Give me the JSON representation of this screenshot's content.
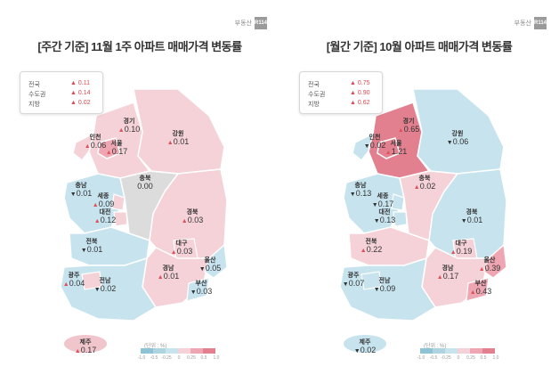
{
  "brand": {
    "text": "부동산",
    "badge": "R114"
  },
  "colors": {
    "up": "#e0505a",
    "down": "#2a8ab6",
    "low_rise": "#f4d2d8",
    "mid_rise": "#eea6b2",
    "high_rise": "#e2808f",
    "fall": "#c6e3ee",
    "flat": "#dcdcdc",
    "sea_label": "#f0c5cc"
  },
  "weekly": {
    "title": "[주간 기준] 11월 1주 아파트 매매가격 변동률",
    "summary": [
      {
        "name": "전국",
        "value": "0.11"
      },
      {
        "name": "수도권",
        "value": "0.14"
      },
      {
        "name": "지방",
        "value": "0.02"
      }
    ],
    "regions": {
      "gyeonggi": {
        "name": "경기",
        "value": "0.10",
        "dir": "up"
      },
      "gangwon": {
        "name": "강원",
        "value": "0.01",
        "dir": "up"
      },
      "incheon": {
        "name": "인천",
        "value": "0.06",
        "dir": "up"
      },
      "seoul": {
        "name": "서울",
        "value": "0.17",
        "dir": "up"
      },
      "chungbuk": {
        "name": "충북",
        "value": "0.00",
        "dir": "flat"
      },
      "chungnam": {
        "name": "충남",
        "value": "0.01",
        "dir": "down"
      },
      "sejong": {
        "name": "세종",
        "value": "0.09",
        "dir": "up"
      },
      "daejeon": {
        "name": "대전",
        "value": "0.12",
        "dir": "up"
      },
      "gyeongbuk": {
        "name": "경북",
        "value": "0.03",
        "dir": "up"
      },
      "jeonbuk": {
        "name": "전북",
        "value": "0.01",
        "dir": "down"
      },
      "daegu": {
        "name": "대구",
        "value": "0.03",
        "dir": "up"
      },
      "ulsan": {
        "name": "울산",
        "value": "0.05",
        "dir": "down"
      },
      "gyeongnam": {
        "name": "경남",
        "value": "0.01",
        "dir": "up"
      },
      "gwangju": {
        "name": "광주",
        "value": "0.04",
        "dir": "up"
      },
      "jeonnam": {
        "name": "전남",
        "value": "0.02",
        "dir": "down"
      },
      "busan": {
        "name": "부산",
        "value": "0.03",
        "dir": "down"
      },
      "jeju": {
        "name": "제주",
        "value": "0.17",
        "dir": "up"
      }
    },
    "scale": {
      "unit": "(단위 : %)",
      "ticks": [
        "-1.0",
        "-0.5",
        "-0.25",
        "0",
        "0.25",
        "0.5",
        "1.0"
      ]
    }
  },
  "monthly": {
    "title": "[월간 기준] 10월 아파트 매매가격 변동률",
    "summary": [
      {
        "name": "전국",
        "value": "0.75"
      },
      {
        "name": "수도권",
        "value": "0.90"
      },
      {
        "name": "지방",
        "value": "0.62"
      }
    ],
    "regions": {
      "gyeonggi": {
        "name": "경기",
        "value": "0.65",
        "dir": "up"
      },
      "gangwon": {
        "name": "강원",
        "value": "0.06",
        "dir": "down"
      },
      "incheon": {
        "name": "인천",
        "value": "0.02",
        "dir": "down"
      },
      "seoul": {
        "name": "서울",
        "value": "1.21",
        "dir": "up"
      },
      "chungbuk": {
        "name": "충북",
        "value": "0.02",
        "dir": "up"
      },
      "chungnam": {
        "name": "충남",
        "value": "0.13",
        "dir": "down"
      },
      "sejong": {
        "name": "세종",
        "value": "0.17",
        "dir": "down"
      },
      "daejeon": {
        "name": "대전",
        "value": "0.13",
        "dir": "down"
      },
      "gyeongbuk": {
        "name": "경북",
        "value": "0.01",
        "dir": "down"
      },
      "jeonbuk": {
        "name": "전북",
        "value": "0.22",
        "dir": "up"
      },
      "daegu": {
        "name": "대구",
        "value": "0.19",
        "dir": "up"
      },
      "ulsan": {
        "name": "울산",
        "value": "0.39",
        "dir": "up"
      },
      "gyeongnam": {
        "name": "경남",
        "value": "0.17",
        "dir": "up"
      },
      "gwangju": {
        "name": "광주",
        "value": "0.07",
        "dir": "down"
      },
      "jeonnam": {
        "name": "전남",
        "value": "0.09",
        "dir": "down"
      },
      "busan": {
        "name": "부산",
        "value": "0.43",
        "dir": "up"
      },
      "jeju": {
        "name": "제주",
        "value": "0.02",
        "dir": "down"
      }
    },
    "scale": {
      "unit": "(단위 : %)",
      "ticks": [
        "-1.0",
        "-0.5",
        "-0.25",
        "0",
        "0.25",
        "0.5",
        "1.0"
      ]
    }
  }
}
